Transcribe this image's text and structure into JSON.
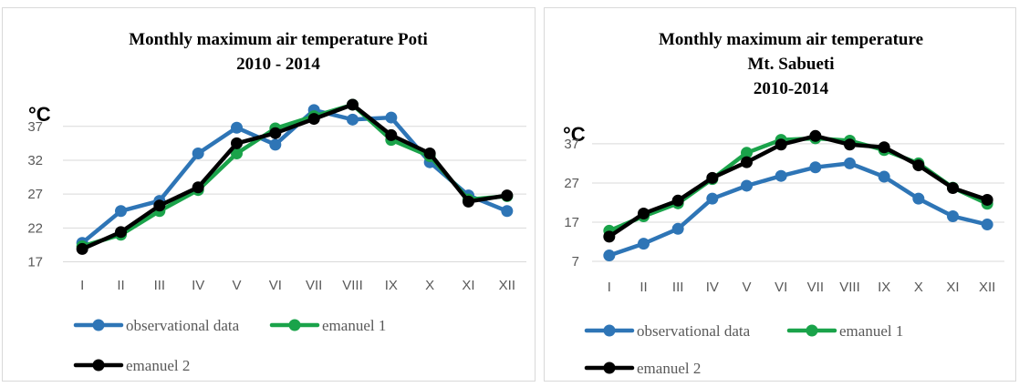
{
  "chart_data": [
    {
      "type": "line",
      "title": [
        "Monthly maximum air temperature Poti",
        "2010 - 2014"
      ],
      "ylabel": "°C",
      "categories": [
        "I",
        "II",
        "III",
        "IV",
        "V",
        "VI",
        "VII",
        "VIII",
        "IX",
        "X",
        "XI",
        "XII"
      ],
      "yticks": [
        17,
        22,
        27,
        32,
        37
      ],
      "ylim": [
        16,
        41
      ],
      "grid": true,
      "legend": "bottom",
      "series": [
        {
          "name": "observational data",
          "color": "#2e75b6",
          "values": [
            19.8,
            24.5,
            26.0,
            33.0,
            36.8,
            34.3,
            39.4,
            38.0,
            38.3,
            31.7,
            26.8,
            24.5
          ]
        },
        {
          "name": "emanuel 1",
          "color": "#1aa34a",
          "values": [
            19.3,
            21.0,
            24.5,
            27.6,
            33.0,
            36.7,
            38.5,
            40.2,
            35.0,
            32.6,
            26.2,
            26.7
          ]
        },
        {
          "name": "emanuel 2",
          "color": "#000000",
          "values": [
            18.9,
            21.4,
            25.3,
            28.0,
            34.5,
            36.0,
            38.1,
            40.2,
            35.7,
            33.0,
            25.9,
            26.8
          ]
        }
      ]
    },
    {
      "type": "line",
      "title": [
        "Monthly maximum air temperature",
        "Mt. Sabueti",
        "2010-2014"
      ],
      "ylabel": "°C",
      "categories": [
        "I",
        "II",
        "III",
        "IV",
        "V",
        "VI",
        "VII",
        "VIII",
        "IX",
        "X",
        "XI",
        "XII"
      ],
      "yticks": [
        7,
        17,
        27,
        37
      ],
      "ylim": [
        7,
        40
      ],
      "grid": true,
      "legend": "bottom",
      "series": [
        {
          "name": "observational data",
          "color": "#2e75b6",
          "values": [
            8.5,
            11.5,
            15.3,
            23.0,
            26.3,
            28.8,
            31.0,
            32.0,
            28.6,
            23.0,
            18.5,
            16.4
          ]
        },
        {
          "name": "emanuel 1",
          "color": "#1aa34a",
          "values": [
            14.8,
            18.5,
            21.8,
            28.0,
            34.7,
            38.0,
            38.4,
            37.8,
            35.4,
            32.0,
            25.8,
            21.7
          ]
        },
        {
          "name": "emanuel 2",
          "color": "#000000",
          "values": [
            13.3,
            19.2,
            22.5,
            28.3,
            32.3,
            36.8,
            39.0,
            36.8,
            36.1,
            31.5,
            25.7,
            22.7
          ]
        }
      ]
    }
  ]
}
